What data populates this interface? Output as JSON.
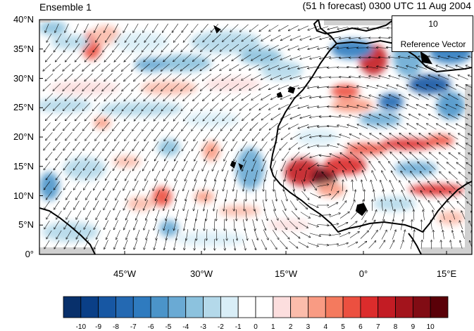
{
  "header": {
    "ensemble_label": "Ensemble 1",
    "forecast_label": "(51 h forecast) 0300 UTC 11 Aug 2004"
  },
  "map": {
    "lat_labels": [
      "40°N",
      "35°N",
      "30°N",
      "25°N",
      "20°N",
      "15°N",
      "10°N",
      "5°N",
      "0°"
    ],
    "lon_labels": [
      "45°W",
      "30°W",
      "15°W",
      "0°",
      "15°E"
    ],
    "ocean_color": "#ffffff",
    "land_outline_color": "#000000"
  },
  "reference_vector": {
    "magnitude": "10",
    "label": "Reference Vector"
  },
  "colorbar": {
    "labels": [
      "-10",
      "-9",
      "-8",
      "-7",
      "-6",
      "-5",
      "-4",
      "-3",
      "-2",
      "-1",
      "0",
      "1",
      "2",
      "3",
      "4",
      "5",
      "6",
      "7",
      "8",
      "9",
      "10"
    ],
    "colors": [
      "#08306b",
      "#0a3f87",
      "#1757a3",
      "#2469b2",
      "#2f7bbf",
      "#4b94c9",
      "#6aaad4",
      "#8cc2de",
      "#b4d9ea",
      "#d9eef7",
      "#ffffff",
      "#ffffff",
      "#fcdede",
      "#fbbcab",
      "#f99b83",
      "#f47a5e",
      "#ec5040",
      "#dc2c2c",
      "#c31c24",
      "#a3141c",
      "#810c14",
      "#5a0008"
    ]
  }
}
